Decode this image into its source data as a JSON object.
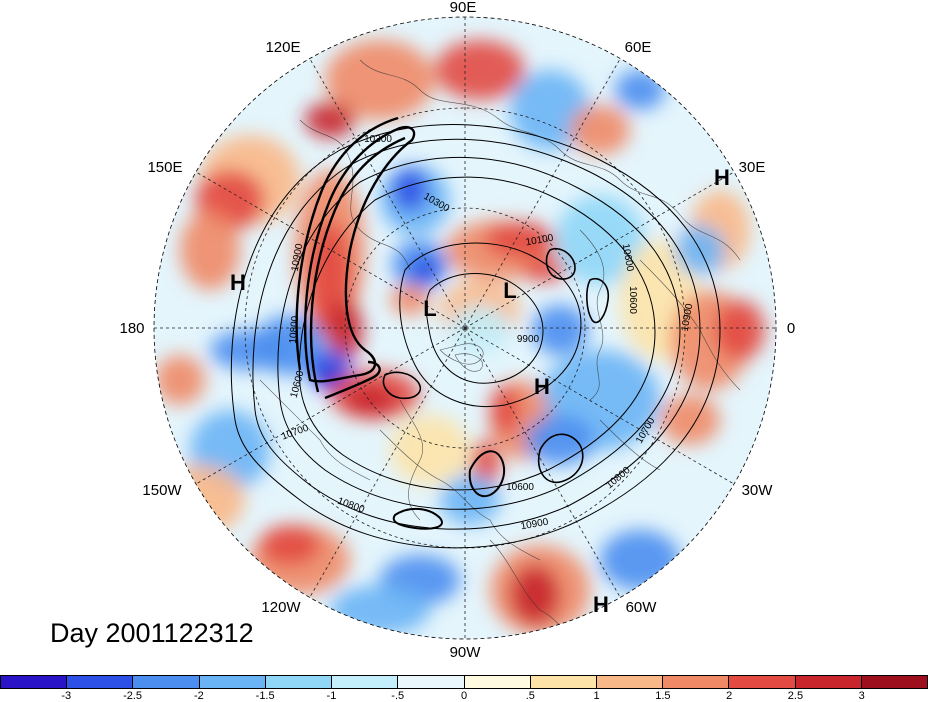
{
  "title": "Day 2001122312",
  "colors": {
    "background": "#ffffff",
    "ocean_base": "#d9efff",
    "contour": "#000000"
  },
  "longitude_labels": [
    {
      "text": "90E",
      "name": "lon-label-90e"
    },
    {
      "text": "60E",
      "name": "lon-label-60e"
    },
    {
      "text": "30E",
      "name": "lon-label-30e"
    },
    {
      "text": "0",
      "name": "lon-label-0"
    },
    {
      "text": "30W",
      "name": "lon-label-30w"
    },
    {
      "text": "60W",
      "name": "lon-label-60w"
    },
    {
      "text": "90W",
      "name": "lon-label-90w"
    },
    {
      "text": "120W",
      "name": "lon-label-120w"
    },
    {
      "text": "150W",
      "name": "lon-label-150w"
    },
    {
      "text": "180",
      "name": "lon-label-180"
    },
    {
      "text": "150E",
      "name": "lon-label-150e"
    },
    {
      "text": "120E",
      "name": "lon-label-120e"
    }
  ],
  "pressure_centers": [
    {
      "text": "H",
      "name": "high-center-siberia"
    },
    {
      "text": "H",
      "name": "high-center-pacific"
    },
    {
      "text": "L",
      "name": "low-center-arctic"
    },
    {
      "text": "L",
      "name": "low-center-scandinavia"
    },
    {
      "text": "H",
      "name": "high-center-greenland"
    },
    {
      "text": "H",
      "name": "high-center-atlantic"
    }
  ],
  "contour_labels": [
    "10300",
    "10300",
    "10100",
    "10600",
    "10900",
    "10800",
    "10600",
    "9900",
    "10600",
    "10700",
    "10700",
    "10800",
    "10900",
    "10600",
    "10800",
    "10900"
  ],
  "colorbar": {
    "colors": [
      "#2a14c8",
      "#2d50e6",
      "#4b8ef0",
      "#6ab4f5",
      "#8fd6f7",
      "#c3eefb",
      "#eaf8fd",
      "#fffae0",
      "#fde3a8",
      "#f9b888",
      "#f08a66",
      "#e24a42",
      "#c8252c",
      "#9e0f1e"
    ],
    "labels": [
      "-3",
      "-2.5",
      "-2",
      "-1.5",
      "-1",
      "-.5",
      "0",
      ".5",
      "1",
      "1.5",
      "2",
      "2.5",
      "3"
    ]
  }
}
